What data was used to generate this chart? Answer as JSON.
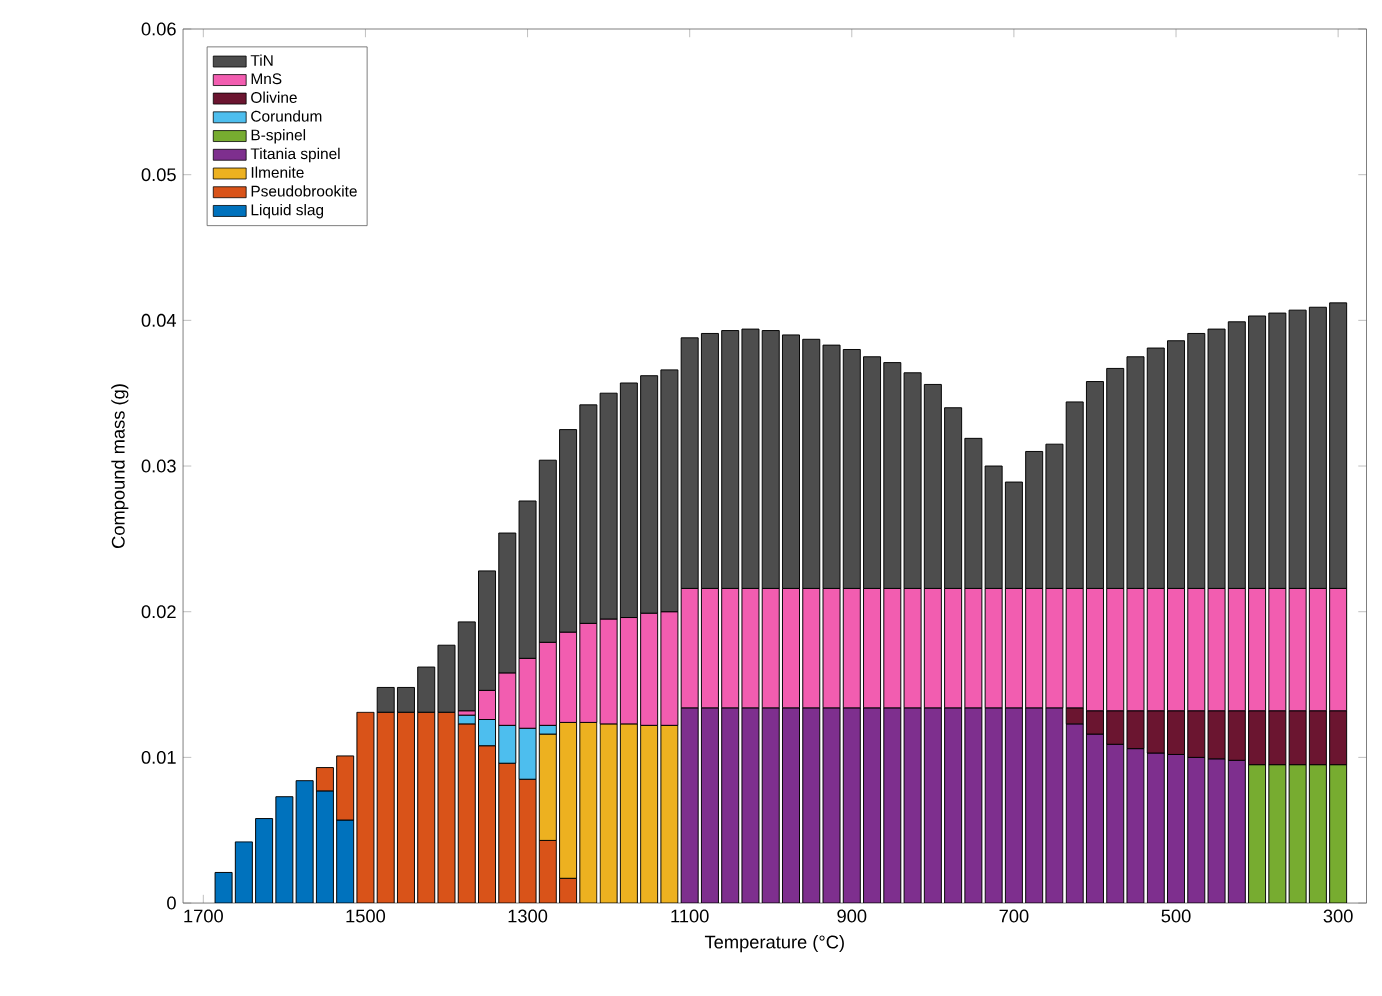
{
  "chart_data": {
    "type": "bar",
    "stacked": true,
    "xlabel": "Temperature (°C)",
    "ylabel": "Compound mass (g)",
    "x": [
      1675,
      1650,
      1625,
      1600,
      1575,
      1550,
      1525,
      1500,
      1475,
      1450,
      1425,
      1400,
      1375,
      1350,
      1325,
      1300,
      1275,
      1250,
      1225,
      1200,
      1175,
      1150,
      1125,
      1100,
      1075,
      1050,
      1025,
      1000,
      975,
      950,
      925,
      900,
      875,
      850,
      825,
      800,
      775,
      750,
      725,
      700,
      675,
      650,
      625,
      600,
      575,
      550,
      525,
      500,
      475,
      450,
      425,
      400,
      375,
      350,
      325,
      300
    ],
    "xlim": [
      1725,
      265
    ],
    "xticks": [
      1700,
      1500,
      1300,
      1100,
      900,
      700,
      500,
      300
    ],
    "ylim": [
      0,
      0.06
    ],
    "yticks": [
      0,
      0.01,
      0.02,
      0.03,
      0.04,
      0.05,
      0.06
    ],
    "legend": "top left",
    "grid": false,
    "series": [
      {
        "name": "Liquid slag",
        "color": "#0072bd",
        "values": [
          0.0021,
          0.0042,
          0.0058,
          0.0073,
          0.0084,
          0.0077,
          0.0057,
          null,
          null,
          null,
          null,
          null,
          null,
          null,
          null,
          null,
          null,
          null,
          null,
          null,
          null,
          null,
          null,
          null,
          null,
          null,
          null,
          null,
          null,
          null,
          null,
          null,
          null,
          null,
          null,
          null,
          null,
          null,
          null,
          null,
          null,
          null,
          null,
          null,
          null,
          null,
          null,
          null,
          null,
          null,
          null,
          null,
          null,
          null,
          null,
          null
        ]
      },
      {
        "name": "Pseudobrookite",
        "color": "#d95319",
        "values": [
          null,
          null,
          null,
          null,
          null,
          0.0016,
          0.0044,
          0.0131,
          0.0131,
          0.0131,
          0.0131,
          0.0131,
          0.0123,
          0.0108,
          0.0096,
          0.0085,
          0.0043,
          0.0017,
          null,
          null,
          null,
          null,
          null,
          null,
          null,
          null,
          null,
          null,
          null,
          null,
          null,
          null,
          null,
          null,
          null,
          null,
          null,
          null,
          null,
          null,
          null,
          null,
          null,
          null,
          null,
          null,
          null,
          null,
          null,
          null,
          null,
          null,
          null,
          null,
          null,
          null
        ]
      },
      {
        "name": "Ilmenite",
        "color": "#edb120",
        "values": [
          null,
          null,
          null,
          null,
          null,
          null,
          null,
          null,
          null,
          null,
          null,
          null,
          null,
          null,
          null,
          null,
          0.0073,
          0.0107,
          0.0124,
          0.0123,
          0.0123,
          0.0122,
          0.0122,
          null,
          null,
          null,
          null,
          null,
          null,
          null,
          null,
          null,
          null,
          null,
          null,
          null,
          null,
          null,
          null,
          null,
          null,
          null,
          null,
          null,
          null,
          null,
          null,
          null,
          null,
          null,
          null,
          null,
          null,
          null,
          null,
          null
        ]
      },
      {
        "name": "Titania spinel",
        "color": "#7e2f8e",
        "values": [
          null,
          null,
          null,
          null,
          null,
          null,
          null,
          null,
          null,
          null,
          null,
          null,
          null,
          null,
          null,
          null,
          null,
          null,
          null,
          null,
          null,
          null,
          null,
          0.0134,
          0.0134,
          0.0134,
          0.0134,
          0.0134,
          0.0134,
          0.0134,
          0.0134,
          0.0134,
          0.0134,
          0.0134,
          0.0134,
          0.0134,
          0.0134,
          0.0134,
          0.0134,
          0.0134,
          0.0134,
          0.0134,
          0.0123,
          0.0116,
          0.0109,
          0.0106,
          0.0103,
          0.0102,
          0.01,
          0.0099,
          0.0098,
          null,
          null,
          null,
          null,
          null
        ]
      },
      {
        "name": "B-spinel",
        "color": "#77ac30",
        "values": [
          null,
          null,
          null,
          null,
          null,
          null,
          null,
          null,
          null,
          null,
          null,
          null,
          null,
          null,
          null,
          null,
          null,
          null,
          null,
          null,
          null,
          null,
          null,
          null,
          null,
          null,
          null,
          null,
          null,
          null,
          null,
          null,
          null,
          null,
          null,
          null,
          null,
          null,
          null,
          null,
          null,
          null,
          null,
          null,
          null,
          null,
          null,
          null,
          null,
          null,
          null,
          0.0095,
          0.0095,
          0.0095,
          0.0095,
          0.0095
        ]
      },
      {
        "name": "Corundum",
        "color": "#4dbeee",
        "values": [
          null,
          null,
          null,
          null,
          null,
          null,
          null,
          null,
          null,
          null,
          null,
          null,
          0.0006,
          0.0018,
          0.0026,
          0.0035,
          0.0006,
          null,
          null,
          null,
          null,
          null,
          null,
          null,
          null,
          null,
          null,
          null,
          null,
          null,
          null,
          null,
          null,
          null,
          null,
          null,
          null,
          null,
          null,
          null,
          null,
          null,
          null,
          null,
          null,
          null,
          null,
          null,
          null,
          null,
          null,
          null,
          null,
          null,
          null,
          null
        ]
      },
      {
        "name": "Olivine",
        "color": "#6b1530",
        "values": [
          null,
          null,
          null,
          null,
          null,
          null,
          null,
          null,
          null,
          null,
          null,
          null,
          null,
          null,
          null,
          null,
          null,
          null,
          null,
          null,
          null,
          null,
          null,
          null,
          null,
          null,
          null,
          null,
          null,
          null,
          null,
          null,
          null,
          null,
          null,
          null,
          null,
          null,
          null,
          null,
          null,
          null,
          0.0011,
          0.0016,
          0.0023,
          0.0026,
          0.0029,
          0.003,
          0.0032,
          0.0033,
          0.0034,
          0.0037,
          0.0037,
          0.0037,
          0.0037,
          0.0037
        ]
      },
      {
        "name": "MnS",
        "color": "#f25db0",
        "values": [
          null,
          null,
          null,
          null,
          null,
          null,
          null,
          null,
          null,
          null,
          null,
          null,
          0.0003,
          0.002,
          0.0036,
          0.0048,
          0.0057,
          0.0062,
          0.0068,
          0.0072,
          0.0073,
          0.0077,
          0.0078,
          0.0082,
          0.0082,
          0.0082,
          0.0082,
          0.0082,
          0.0082,
          0.0082,
          0.0082,
          0.0082,
          0.0082,
          0.0082,
          0.0082,
          0.0082,
          0.0082,
          0.0082,
          0.0082,
          0.0082,
          0.0082,
          0.0082,
          0.0082,
          0.0084,
          0.0084,
          0.0084,
          0.0084,
          0.0084,
          0.0084,
          0.0084,
          0.0084,
          0.0084,
          0.0084,
          0.0084,
          0.0084,
          0.0084
        ]
      },
      {
        "name": "TiN",
        "color": "#4d4d4d",
        "values": [
          null,
          null,
          null,
          null,
          null,
          null,
          null,
          null,
          0.0017,
          0.0017,
          0.0031,
          0.0046,
          0.0061,
          0.0082,
          0.0096,
          0.0108,
          0.0125,
          0.0139,
          0.015,
          0.0155,
          0.0161,
          0.0163,
          0.0166,
          0.0172,
          0.0175,
          0.0177,
          0.0178,
          0.0177,
          0.0174,
          0.0171,
          0.0167,
          0.0164,
          0.0159,
          0.0155,
          0.0148,
          0.014,
          0.0124,
          0.0103,
          0.0084,
          0.0073,
          0.0094,
          0.0099,
          0.0128,
          0.0142,
          0.0151,
          0.0159,
          0.0165,
          0.017,
          0.0175,
          0.0178,
          0.0183,
          0.0187,
          0.0189,
          0.0191,
          0.0193,
          0.0196
        ]
      }
    ]
  }
}
